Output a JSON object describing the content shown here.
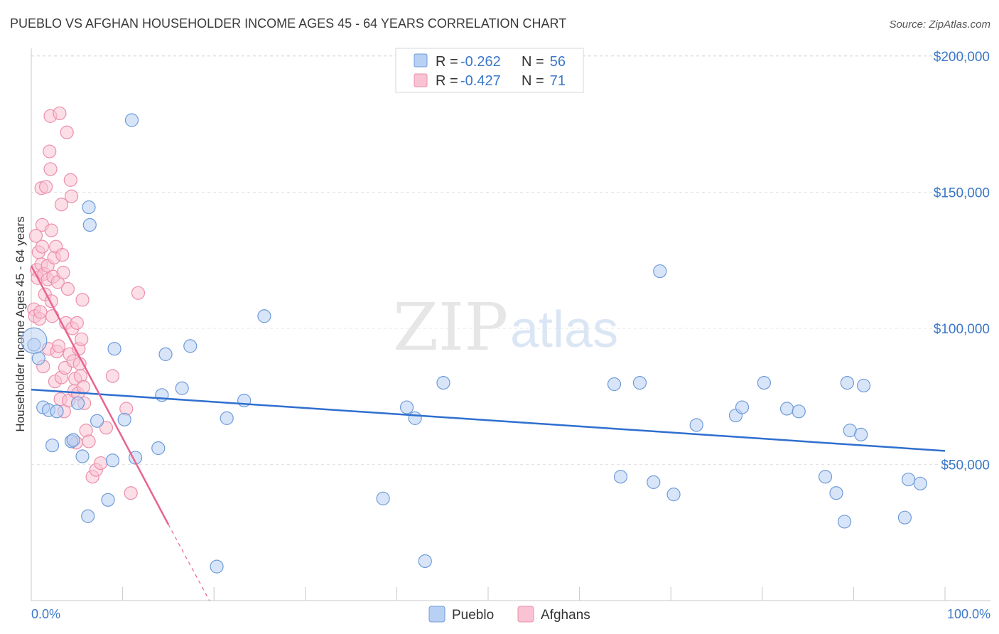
{
  "header": {
    "title": "PUEBLO VS AFGHAN HOUSEHOLDER INCOME AGES 45 - 64 YEARS CORRELATION CHART",
    "source": "Source: ZipAtlas.com"
  },
  "watermark": {
    "zip": "ZIP",
    "atlas": "atlas"
  },
  "legend": {
    "rows": [
      {
        "r_label": "R =",
        "r_value": "-0.262",
        "n_label": "N =",
        "n_value": "56",
        "color": "#b8d0f4",
        "stroke": "#6f9bd8"
      },
      {
        "r_label": "R =",
        "r_value": "-0.427",
        "n_label": "N =",
        "n_value": "71",
        "color": "#f9c3d3",
        "stroke": "#ec8fab"
      }
    ]
  },
  "bottom_legend": [
    {
      "label": "Pueblo",
      "color": "#b8d0f4",
      "stroke": "#6f9bd8"
    },
    {
      "label": "Afghans",
      "color": "#f9c3d3",
      "stroke": "#ec8fab"
    }
  ],
  "chart_data": {
    "type": "scatter",
    "title": "PUEBLO VS AFGHAN HOUSEHOLDER INCOME AGES 45 - 64 YEARS CORRELATION CHART",
    "xlabel": "",
    "ylabel": "Householder Income Ages 45 - 64 years",
    "xlim": [
      0,
      100
    ],
    "ylim": [
      0,
      205000
    ],
    "x_tick_labels": [
      "0.0%",
      "100.0%"
    ],
    "y_ticks": [
      50000,
      100000,
      150000,
      200000
    ],
    "y_tick_labels": [
      "$50,000",
      "$100,000",
      "$150,000",
      "$200,000"
    ],
    "grid": true,
    "series": [
      {
        "name": "Pueblo",
        "color": "#b8d0f4",
        "stroke": "#6f9bd8",
        "trend": {
          "x0": 0,
          "y0": 77500,
          "x1": 100,
          "y1": 55000,
          "color": "#2f6fcf"
        },
        "points": [
          [
            0.3,
            94000
          ],
          [
            0.8,
            89000
          ],
          [
            1.3,
            71000
          ],
          [
            1.9,
            70000
          ],
          [
            2.3,
            57000
          ],
          [
            2.8,
            69500
          ],
          [
            4.4,
            58500
          ],
          [
            4.6,
            59000
          ],
          [
            5.1,
            72500
          ],
          [
            5.6,
            53000
          ],
          [
            6.2,
            31000
          ],
          [
            6.3,
            144500
          ],
          [
            6.4,
            138000
          ],
          [
            7.2,
            66000
          ],
          [
            8.4,
            37000
          ],
          [
            8.9,
            51500
          ],
          [
            9.1,
            92500
          ],
          [
            10.2,
            66500
          ],
          [
            11.0,
            176500
          ],
          [
            11.4,
            52500
          ],
          [
            13.9,
            56000
          ],
          [
            14.3,
            75500
          ],
          [
            14.7,
            90500
          ],
          [
            16.5,
            78000
          ],
          [
            17.4,
            93500
          ],
          [
            20.3,
            12500
          ],
          [
            21.4,
            67000
          ],
          [
            23.3,
            73500
          ],
          [
            25.5,
            104500
          ],
          [
            38.5,
            37500
          ],
          [
            41.1,
            71000
          ],
          [
            42.0,
            67000
          ],
          [
            43.1,
            14500
          ],
          [
            45.1,
            80000
          ],
          [
            63.8,
            79500
          ],
          [
            64.5,
            45500
          ],
          [
            66.6,
            80000
          ],
          [
            68.1,
            43500
          ],
          [
            68.8,
            121000
          ],
          [
            70.3,
            39000
          ],
          [
            72.8,
            64500
          ],
          [
            77.1,
            68000
          ],
          [
            77.8,
            71000
          ],
          [
            80.2,
            80000
          ],
          [
            82.7,
            70500
          ],
          [
            84.0,
            69500
          ],
          [
            86.9,
            45500
          ],
          [
            88.1,
            39500
          ],
          [
            89.0,
            29000
          ],
          [
            89.3,
            80000
          ],
          [
            89.6,
            62500
          ],
          [
            90.8,
            61000
          ],
          [
            91.1,
            79000
          ],
          [
            95.6,
            30500
          ],
          [
            96.0,
            44500
          ],
          [
            97.3,
            43000
          ]
        ]
      },
      {
        "name": "Afghans",
        "color": "#f9c3d3",
        "stroke": "#ec8fab",
        "trend": {
          "x0": 0,
          "y0": 123000,
          "x1": 15,
          "y1": 28000,
          "dash_x1": 19.5,
          "dash_y1": 0,
          "color": "#e8648f"
        },
        "points": [
          [
            0.3,
            107000
          ],
          [
            0.4,
            104500
          ],
          [
            0.5,
            134000
          ],
          [
            0.6,
            121500
          ],
          [
            0.7,
            118500
          ],
          [
            0.8,
            128000
          ],
          [
            0.9,
            103500
          ],
          [
            1.0,
            106000
          ],
          [
            1.1,
            123500
          ],
          [
            1.1,
            151500
          ],
          [
            1.2,
            130000
          ],
          [
            1.2,
            138000
          ],
          [
            1.3,
            86000
          ],
          [
            1.4,
            120000
          ],
          [
            1.5,
            112500
          ],
          [
            1.6,
            152000
          ],
          [
            1.8,
            118000
          ],
          [
            1.8,
            123000
          ],
          [
            1.9,
            92500
          ],
          [
            2.0,
            165000
          ],
          [
            2.1,
            158500
          ],
          [
            2.1,
            178000
          ],
          [
            2.2,
            136000
          ],
          [
            2.2,
            110000
          ],
          [
            2.3,
            104500
          ],
          [
            2.4,
            119000
          ],
          [
            2.5,
            126000
          ],
          [
            2.6,
            80500
          ],
          [
            2.7,
            130000
          ],
          [
            2.8,
            91500
          ],
          [
            2.9,
            117000
          ],
          [
            3.0,
            93500
          ],
          [
            3.1,
            179000
          ],
          [
            3.2,
            74000
          ],
          [
            3.3,
            82000
          ],
          [
            3.4,
            127000
          ],
          [
            3.5,
            120500
          ],
          [
            3.6,
            69500
          ],
          [
            3.7,
            85500
          ],
          [
            3.8,
            102000
          ],
          [
            3.9,
            172000
          ],
          [
            4.0,
            114500
          ],
          [
            4.1,
            73500
          ],
          [
            4.2,
            90500
          ],
          [
            4.3,
            154500
          ],
          [
            4.4,
            148500
          ],
          [
            4.5,
            100000
          ],
          [
            4.6,
            88000
          ],
          [
            4.7,
            77000
          ],
          [
            4.8,
            81500
          ],
          [
            4.9,
            58000
          ],
          [
            5.0,
            102000
          ],
          [
            5.1,
            76000
          ],
          [
            5.2,
            92500
          ],
          [
            5.3,
            87000
          ],
          [
            5.4,
            82500
          ],
          [
            5.5,
            96000
          ],
          [
            5.6,
            110500
          ],
          [
            5.7,
            78500
          ],
          [
            5.8,
            72500
          ],
          [
            6.0,
            62500
          ],
          [
            6.3,
            58500
          ],
          [
            6.7,
            45500
          ],
          [
            7.1,
            48000
          ],
          [
            7.6,
            50500
          ],
          [
            8.2,
            63500
          ],
          [
            8.9,
            82500
          ],
          [
            10.4,
            70500
          ],
          [
            10.9,
            39500
          ],
          [
            11.7,
            113000
          ],
          [
            3.3,
            145500
          ]
        ]
      }
    ]
  }
}
